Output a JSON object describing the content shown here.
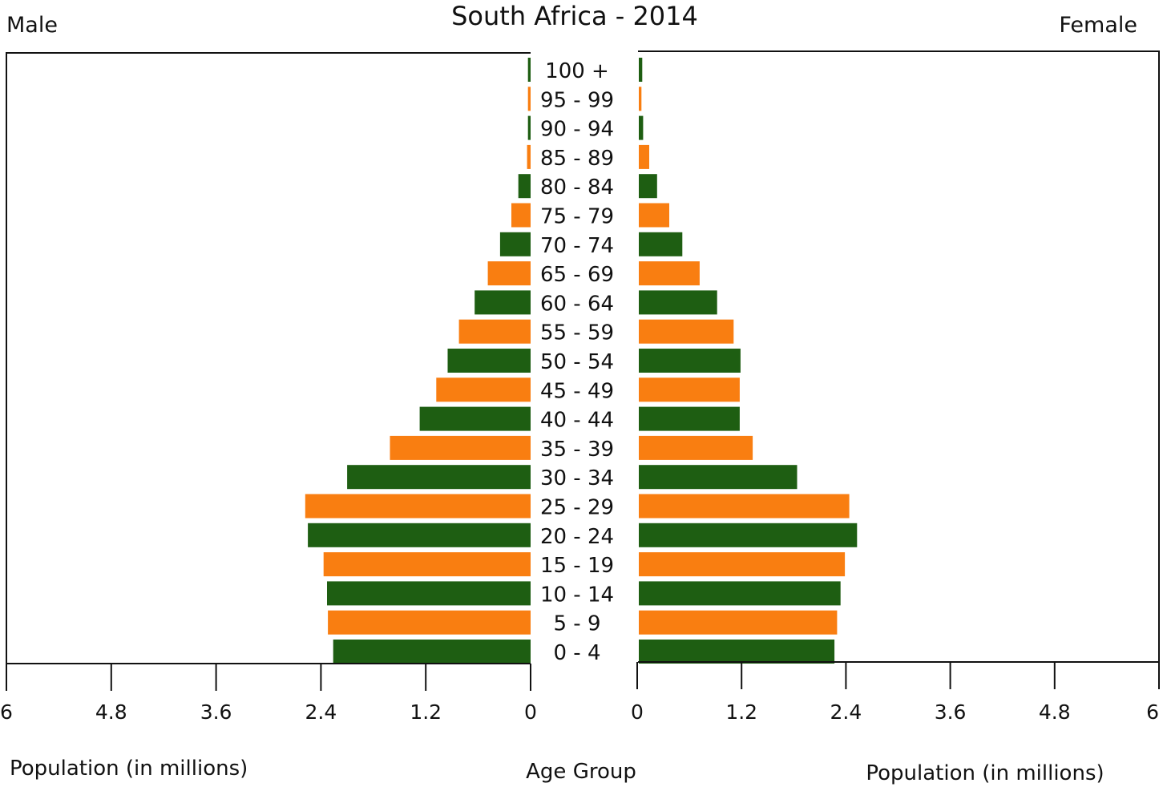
{
  "chart_data": {
    "type": "bar",
    "title": "South Africa - 2014",
    "left_label": "Male",
    "right_label": "Female",
    "xlabel_left": "Population (in millions)",
    "xlabel_right": "Population (in millions)",
    "center_label": "Age Group",
    "xlim": [
      0,
      6
    ],
    "ticks": [
      "6",
      "4.8",
      "3.6",
      "2.4",
      "1.2",
      "0"
    ],
    "ticks_right": [
      "0",
      "1.2",
      "2.4",
      "3.6",
      "4.8",
      "6"
    ],
    "tick_values": [
      6,
      4.8,
      3.6,
      2.4,
      1.2,
      0
    ],
    "tick_values_right": [
      0,
      1.2,
      2.4,
      3.6,
      4.8,
      6
    ],
    "colors": [
      "#1e5e12",
      "#f97e11"
    ],
    "categories": [
      "100 +",
      "95 - 99",
      "90 - 94",
      "85 - 89",
      "80 - 84",
      "75 - 79",
      "70 - 74",
      "65 - 69",
      "60 - 64",
      "55 - 59",
      "50 - 54",
      "45 - 49",
      "40 - 44",
      "35 - 39",
      "30 - 34",
      "25 - 29",
      "20 - 24",
      "15 - 19",
      "10 - 14",
      "5 - 9",
      "0 - 4"
    ],
    "series": [
      {
        "values": [
          0.03,
          0.03,
          0.03,
          0.04,
          0.14,
          0.22,
          0.35,
          0.49,
          0.64,
          0.82,
          0.95,
          1.08,
          1.27,
          1.61,
          2.1,
          2.58,
          2.55,
          2.37,
          2.33,
          2.32,
          2.26
        ]
      },
      {
        "values": [
          0.04,
          0.03,
          0.05,
          0.12,
          0.21,
          0.35,
          0.5,
          0.7,
          0.9,
          1.09,
          1.17,
          1.16,
          1.16,
          1.31,
          1.82,
          2.42,
          2.51,
          2.37,
          2.32,
          2.28,
          2.25
        ]
      }
    ]
  }
}
